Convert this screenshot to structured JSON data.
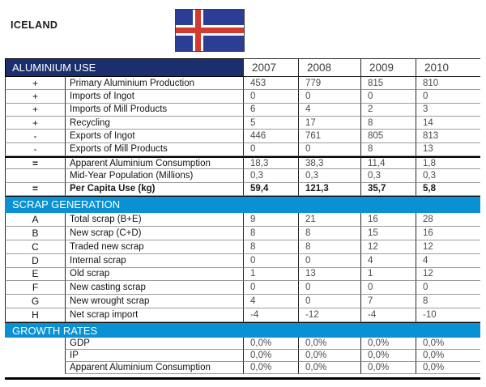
{
  "page": {
    "title": "ICELAND"
  },
  "flag": {
    "country": "Iceland"
  },
  "colors": {
    "navy": "#1b2f6e",
    "blue": "#0a91d4",
    "flag_blue": "#2b3d94",
    "flag_red": "#d23b30"
  },
  "table": {
    "years": [
      "2007",
      "2008",
      "2009",
      "2010"
    ],
    "sections": [
      {
        "title": "ALUMINIUM USE",
        "rows": [
          {
            "op": "+",
            "label": "Primary Aluminium Production",
            "values": [
              "453",
              "779",
              "815",
              "810"
            ]
          },
          {
            "op": "+",
            "label": "Imports of Ingot",
            "values": [
              "0",
              "0",
              "0",
              "0"
            ]
          },
          {
            "op": "+",
            "label": "Imports of Mill Products",
            "values": [
              "6",
              "4",
              "2",
              "3"
            ]
          },
          {
            "op": "+",
            "label": "Recycling",
            "values": [
              "5",
              "17",
              "8",
              "14"
            ]
          },
          {
            "op": "-",
            "label": "Exports of Ingot",
            "values": [
              "446",
              "761",
              "805",
              "813"
            ]
          },
          {
            "op": "-",
            "label": "Exports of Mill Products",
            "values": [
              "0",
              "0",
              "8",
              "13"
            ]
          },
          {
            "op": "=",
            "label": "Apparent Aluminium Consumption",
            "values": [
              "18,3",
              "38,3",
              "11,4",
              "1,8"
            ],
            "thick_top": true
          },
          {
            "op": "",
            "label": "Mid-Year Population (Millions)",
            "values": [
              "0,3",
              "0,3",
              "0,3",
              "0,3"
            ]
          },
          {
            "op": "=",
            "label": "Per Capita Use (kg)",
            "values": [
              "59,4",
              "121,3",
              "35,7",
              "5,8"
            ],
            "bold": true
          }
        ]
      },
      {
        "title": "SCRAP GENERATION",
        "rows": [
          {
            "op": "A",
            "label": "Total scrap (B+E)",
            "values": [
              "9",
              "21",
              "16",
              "28"
            ]
          },
          {
            "op": "B",
            "label": "New scrap (C+D)",
            "values": [
              "8",
              "8",
              "15",
              "16"
            ]
          },
          {
            "op": "C",
            "label": "Traded new scrap",
            "values": [
              "8",
              "8",
              "12",
              "12"
            ]
          },
          {
            "op": "D",
            "label": "Internal scrap",
            "values": [
              "0",
              "0",
              "4",
              "4"
            ]
          },
          {
            "op": "E",
            "label": "Old scrap",
            "values": [
              "1",
              "13",
              "1",
              "12"
            ]
          },
          {
            "op": "F",
            "label": "New casting scrap",
            "values": [
              "0",
              "0",
              "0",
              "0"
            ]
          },
          {
            "op": "G",
            "label": "New wrought scrap",
            "values": [
              "4",
              "0",
              "7",
              "8"
            ]
          },
          {
            "op": "H",
            "label": "Net scrap import",
            "values": [
              "-4",
              "-12",
              "-4",
              "-10"
            ]
          }
        ]
      },
      {
        "title": "GROWTH RATES",
        "no_opcol": true,
        "rows": [
          {
            "op": "",
            "label": "GDP",
            "values": [
              "0,0%",
              "0,0%",
              "0,0%",
              "0,0%"
            ]
          },
          {
            "op": "",
            "label": "IP",
            "values": [
              "0,0%",
              "0,0%",
              "0,0%",
              "0,0%"
            ]
          },
          {
            "op": "",
            "label": "Apparent Aluminium Consumption",
            "values": [
              "0,0%",
              "0,0%",
              "0,0%",
              "0,0%"
            ]
          }
        ]
      }
    ]
  }
}
